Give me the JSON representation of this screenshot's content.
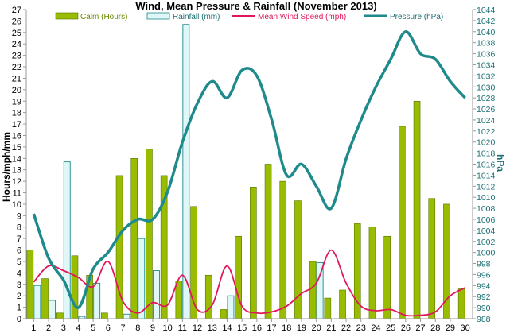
{
  "chart_data": {
    "type": "bar",
    "title": "Wind, Mean Pressure & Rainfall (November 2013)",
    "ylabel": "Hours/mph/mm",
    "y2label": "hPa",
    "categories": [
      "1",
      "2",
      "3",
      "4",
      "5",
      "6",
      "7",
      "8",
      "9",
      "10",
      "11",
      "12",
      "13",
      "14",
      "15",
      "16",
      "17",
      "18",
      "19",
      "20",
      "21",
      "22",
      "23",
      "24",
      "25",
      "26",
      "27",
      "28",
      "29",
      "30"
    ],
    "ylim": [
      0,
      27
    ],
    "y2lim": [
      988,
      1044
    ],
    "yticks": [
      "0",
      "1",
      "2",
      "3",
      "4",
      "5",
      "6",
      "7",
      "8",
      "9",
      "10",
      "11",
      "12",
      "13",
      "14",
      "15",
      "16",
      "17",
      "18",
      "19",
      "20",
      "21",
      "22",
      "23",
      "24",
      "25",
      "26",
      "27"
    ],
    "y2ticks": [
      "988",
      "990",
      "992",
      "994",
      "996",
      "998",
      "1000",
      "1002",
      "1004",
      "1006",
      "1008",
      "1010",
      "1012",
      "1014",
      "1016",
      "1018",
      "1020",
      "1022",
      "1024",
      "1026",
      "1028",
      "1030",
      "1032",
      "1034",
      "1036",
      "1038",
      "1040",
      "1042",
      "1044"
    ],
    "series": [
      {
        "name": "Calm (Hours)",
        "kind": "bar",
        "color": "#99bb00",
        "values": [
          6,
          3.5,
          0.5,
          5.5,
          3.8,
          0.5,
          12.5,
          14,
          14.8,
          12.5,
          3.3,
          9.8,
          3.8,
          0.8,
          7.2,
          11.5,
          13.5,
          12,
          10.3,
          5,
          1.8,
          2.5,
          8.3,
          8,
          7.2,
          16.8,
          19,
          10.5,
          10,
          2.6
        ]
      },
      {
        "name": "Rainfall (mm)",
        "kind": "bar",
        "color": "#dff7f7",
        "values": [
          2.9,
          1.6,
          13.7,
          0.2,
          3.1,
          0,
          0.4,
          7,
          4.2,
          0,
          25.7,
          0,
          0,
          2,
          0,
          0,
          0,
          0,
          0,
          4.9,
          0,
          0,
          0,
          0,
          0,
          0,
          0,
          0,
          0,
          0
        ]
      },
      {
        "name": "Mean Wind Speed (mph)",
        "kind": "line",
        "color": "#e0185a",
        "values": [
          3.2,
          4.6,
          4.2,
          3.6,
          2.8,
          5,
          1.5,
          0.5,
          1.4,
          1.2,
          3.8,
          0.8,
          1.2,
          4.6,
          1.1,
          0.5,
          0.6,
          1.1,
          2.2,
          3.1,
          6,
          3.1,
          1.1,
          0.7,
          0.8,
          0.3,
          0.3,
          0.6,
          2,
          2.7
        ]
      },
      {
        "name": "Pressure (hPa)",
        "kind": "line",
        "axis": "right",
        "color": "#1f8a8c",
        "values": [
          1007,
          999,
          995,
          990,
          997,
          1000,
          1004,
          1006,
          1006,
          1011,
          1020,
          1027,
          1031,
          1028,
          1033,
          1032,
          1024,
          1014,
          1016,
          1012,
          1008,
          1017,
          1024,
          1030,
          1035,
          1040,
          1036,
          1035,
          1031,
          1028
        ]
      }
    ]
  }
}
